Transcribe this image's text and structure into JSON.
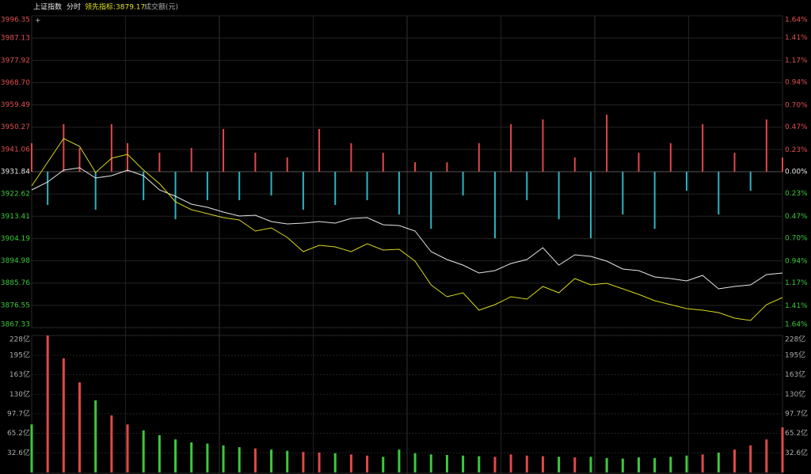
{
  "header": {
    "title": "上证指数",
    "mode": "分时",
    "indicator": "领先指标:3879.17",
    "volume_label": "成交额(元)"
  },
  "chart_data": [
    {
      "type": "line",
      "ylim": [
        3867.33,
        3996.35
      ],
      "yticks": [
        3996.35,
        3987.13,
        3977.92,
        {
          "value": 3968.7,
          "label": "3968.70"
        },
        3959.49,
        3950.27,
        3941.06,
        3931.84,
        3922.62,
        3913.41,
        3904.19,
        3894.98,
        3885.76,
        3876.55,
        3867.33
      ],
      "y2lim": [
        -1.64,
        1.64
      ],
      "y2ticks": [
        {
          "value": 1.64,
          "label": "1.64%"
        },
        {
          "value": 1.41,
          "label": "1.41%"
        },
        {
          "value": 1.17,
          "label": "1.17%"
        },
        {
          "value": 0.94,
          "label": "0.94%"
        },
        {
          "value": 0.7,
          "label": "0.70%"
        },
        {
          "value": 0.47,
          "label": "0.47%"
        },
        {
          "value": 0.23,
          "label": "0.23%"
        },
        {
          "value": 0,
          "label": "0.00%"
        },
        {
          "value": -0.23,
          "label": "0.23%"
        },
        {
          "value": -0.47,
          "label": "0.47%"
        },
        {
          "value": -0.7,
          "label": "0.70%"
        },
        {
          "value": -0.94,
          "label": "0.94%"
        },
        {
          "value": -1.17,
          "label": "1.17%"
        },
        {
          "value": -1.41,
          "label": "1.41%"
        },
        {
          "value": -1.64,
          "label": "1.64%"
        }
      ],
      "up_color": "#e04848",
      "down_color": "#2fb3c4",
      "series": [
        {
          "color": "#e6e6e6",
          "values": [
            3924.31,
            3927.58,
            3932.49,
            3933.48,
            3929.22,
            3930.2,
            3932.49,
            3930.2,
            3924.31,
            3921.69,
            3918.41,
            3917.1,
            3915.14,
            3913.5,
            3913.83,
            3911.21,
            3910.23,
            3910.56,
            3911.21,
            3910.56,
            3912.52,
            3912.85,
            3909.9,
            3909.57,
            3907.28,
            3898.77,
            3895.49,
            3893.2,
            3889.93,
            3890.91,
            3893.85,
            3895.49,
            3900.4,
            3893.2,
            3897.46,
            3896.8,
            3894.84,
            3891.56,
            3890.91,
            3888.29,
            3887.63,
            3886.65,
            3888.94,
            3883.38,
            3884.36,
            3885.01,
            3889.27,
            3889.93
          ]
        },
        {
          "color": "#d8d820",
          "values": [
            3925.95,
            3935.77,
            3945.59,
            3942.32,
            3931.51,
            3937.41,
            3939.04,
            3932.49,
            3926.93,
            3919.4,
            3916.12,
            3914.48,
            3912.85,
            3911.87,
            3907.28,
            3908.59,
            3904.66,
            3898.77,
            3901.39,
            3900.73,
            3898.77,
            3902.04,
            3899.42,
            3899.75,
            3894.84,
            3885.01,
            3880.1,
            3881.74,
            3874.53,
            3876.83,
            3880.1,
            3879.12,
            3884.36,
            3881.74,
            3887.63,
            3885.01,
            3885.67,
            3883.38,
            3881.08,
            3878.46,
            3876.83,
            3875.19,
            3874.53,
            3873.55,
            3871.26,
            3870.28,
            3876.83,
            3879.77
          ]
        },
        {
          "type": "bar",
          "axis": "y2",
          "values": [
            0.3,
            -0.35,
            0.5,
            0.25,
            -0.4,
            0.5,
            0.3,
            -0.3,
            0.2,
            -0.5,
            0.25,
            -0.3,
            0.45,
            -0.3,
            0.2,
            -0.25,
            0.15,
            -0.4,
            0.45,
            -0.35,
            0.3,
            -0.3,
            0.2,
            -0.45,
            0.1,
            -0.6,
            0.1,
            -0.25,
            0.3,
            -0.7,
            0.5,
            -0.3,
            0.55,
            -0.5,
            0.15,
            -0.7,
            0.6,
            -0.45,
            0.2,
            -0.6,
            0.3,
            -0.2,
            0.5,
            -0.45,
            0.2,
            -0.2,
            0.55,
            0.15
          ]
        }
      ]
    },
    {
      "type": "bar",
      "ylim": [
        0,
        228
      ],
      "yticks": [
        {
          "value": 228,
          "label": "228亿"
        },
        {
          "value": 195,
          "label": "195亿"
        },
        {
          "value": 163,
          "label": "163亿"
        },
        {
          "value": 130,
          "label": "130亿"
        },
        {
          "value": 97.7,
          "label": "97.7亿"
        },
        {
          "value": 65.2,
          "label": "65.2亿"
        },
        {
          "value": 32.6,
          "label": "32.6亿"
        }
      ],
      "up_color": "#e04848",
      "down_color": "#3cc83c",
      "values": [
        80,
        228,
        190,
        150,
        120,
        95,
        80,
        70,
        62,
        55,
        50,
        48,
        45,
        42,
        40,
        38,
        36,
        34,
        33,
        32,
        30,
        28,
        26,
        38,
        32,
        30,
        29,
        28,
        27,
        26,
        30,
        28,
        27,
        26,
        25,
        26,
        24,
        23,
        25,
        24,
        26,
        28,
        30,
        33,
        38,
        45,
        55,
        75
      ]
    }
  ]
}
